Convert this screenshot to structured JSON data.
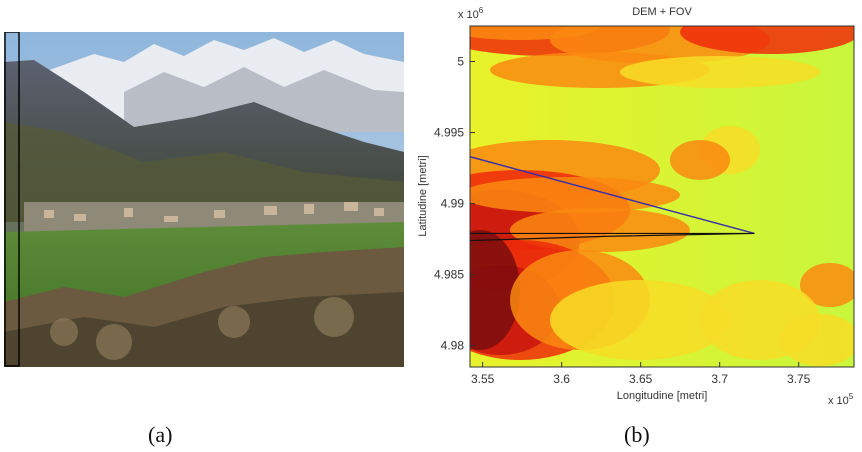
{
  "figure_a": {
    "caption": "(a)",
    "description_icon": "landscape-photo-alpine-village"
  },
  "figure_b": {
    "caption": "(b)"
  },
  "chart_data": {
    "type": "heatmap",
    "title": "DEM + FOV",
    "xlabel": "Longitudine [metri]",
    "ylabel": "Latitudine [metri]",
    "x_exponent_label": "x 10",
    "x_exponent": "5",
    "y_exponent_label": "x 10",
    "y_exponent": "6",
    "xlim": [
      354200,
      378500
    ],
    "ylim": [
      4978500,
      5002500
    ],
    "x_ticks": [
      {
        "value": 355000,
        "label": "3.55"
      },
      {
        "value": 360000,
        "label": "3.6"
      },
      {
        "value": 365000,
        "label": "3.65"
      },
      {
        "value": 370000,
        "label": "3.7"
      },
      {
        "value": 375000,
        "label": "3.75"
      }
    ],
    "y_ticks": [
      {
        "value": 4980000,
        "label": "4.98"
      },
      {
        "value": 4985000,
        "label": "4.985"
      },
      {
        "value": 4990000,
        "label": "4.99"
      },
      {
        "value": 4995000,
        "label": "4.995"
      },
      {
        "value": 5000000,
        "label": "5"
      }
    ],
    "colormap": [
      "#7a0d0d",
      "#c8140e",
      "#ee2b0b",
      "#fa8a10",
      "#f7dd26",
      "#d9f71c",
      "#c8f53a"
    ],
    "fov": {
      "apex": [
        372200,
        4987900
      ],
      "outer_line_end": [
        354200,
        4993300
      ],
      "outer_line_color": "#3a2fa8",
      "inner_wedge": [
        [
          354200,
          4987900
        ],
        [
          363000,
          4987900
        ],
        [
          372200,
          4987900
        ],
        [
          363000,
          4987700
        ],
        [
          354200,
          4987400
        ]
      ],
      "inner_color": "#111111"
    }
  }
}
